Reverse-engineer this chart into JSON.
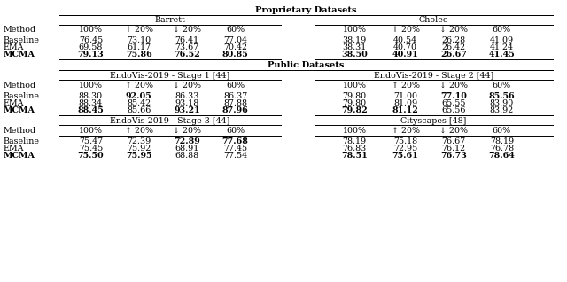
{
  "title_proprietary": "Proprietary Datasets",
  "title_public": "Public Datasets",
  "sections": {
    "Barrett": {
      "col_headers": [
        "100%",
        "↑ 20%",
        "↓ 20%",
        "60%"
      ],
      "rows": {
        "Baseline": [
          "76.45",
          "73.10",
          "76.41",
          "77.04"
        ],
        "EMA": [
          "69.58",
          "61.17",
          "73.67",
          "70.42"
        ],
        "MCMA": [
          "79.13",
          "75.86",
          "76.52",
          "80.85"
        ]
      },
      "bold": {
        "MCMA": [
          true,
          true,
          true,
          true
        ]
      }
    },
    "Cholec": {
      "col_headers": [
        "100%",
        "↑ 20%",
        "↓ 20%",
        "60%"
      ],
      "rows": {
        "Baseline": [
          "38.19",
          "40.54",
          "26.28",
          "41.09"
        ],
        "EMA": [
          "38.31",
          "40.70",
          "26.42",
          "41.24"
        ],
        "MCMA": [
          "38.50",
          "40.91",
          "26.67",
          "41.45"
        ]
      },
      "bold": {
        "MCMA": [
          true,
          true,
          true,
          true
        ]
      }
    },
    "EndoVis-2019 - Stage 1 [44]": {
      "col_headers": [
        "100%",
        "↑ 20%",
        "↓ 20%",
        "60%"
      ],
      "rows": {
        "Baseline": [
          "88.30",
          "92.05",
          "86.33",
          "86.37"
        ],
        "EMA": [
          "88.34",
          "85.42",
          "93.18",
          "87.88"
        ],
        "MCMA": [
          "88.45",
          "85.66",
          "93.21",
          "87.96"
        ]
      },
      "bold": {
        "Baseline": [
          false,
          true,
          false,
          false
        ],
        "MCMA": [
          true,
          false,
          true,
          true
        ]
      }
    },
    "EndoVis-2019 - Stage 2 [44]": {
      "col_headers": [
        "100%",
        "↑ 20%",
        "↓ 20%",
        "60%"
      ],
      "rows": {
        "Baseline": [
          "79.80",
          "71.00",
          "77.10",
          "85.56"
        ],
        "EMA": [
          "79.80",
          "81.09",
          "65.55",
          "83.90"
        ],
        "MCMA": [
          "79.82",
          "81.12",
          "65.56",
          "83.92"
        ]
      },
      "bold": {
        "Baseline": [
          false,
          false,
          true,
          true
        ],
        "MCMA": [
          true,
          true,
          false,
          false
        ]
      }
    },
    "EndoVis-2019 - Stage 3 [44]": {
      "col_headers": [
        "100%",
        "↑ 20%",
        "↓ 20%",
        "60%"
      ],
      "rows": {
        "Baseline": [
          "75.47",
          "72.39",
          "72.89",
          "77.68"
        ],
        "EMA": [
          "75.45",
          "75.92",
          "68.91",
          "77.45"
        ],
        "MCMA": [
          "75.50",
          "75.95",
          "68.88",
          "77.54"
        ]
      },
      "bold": {
        "Baseline": [
          false,
          false,
          true,
          true
        ],
        "MCMA": [
          true,
          true,
          false,
          false
        ]
      }
    },
    "Cityscapes [48]": {
      "col_headers": [
        "100%",
        "↑ 20%",
        "↓ 20%",
        "60%"
      ],
      "rows": {
        "Baseline": [
          "78.19",
          "75.18",
          "76.67",
          "78.19"
        ],
        "EMA": [
          "76.83",
          "72.95",
          "76.12",
          "76.78"
        ],
        "MCMA": [
          "78.51",
          "75.61",
          "76.73",
          "78.64"
        ]
      },
      "bold": {
        "MCMA": [
          true,
          true,
          true,
          true
        ]
      }
    }
  },
  "fontsize": 6.8,
  "lw": 0.7
}
